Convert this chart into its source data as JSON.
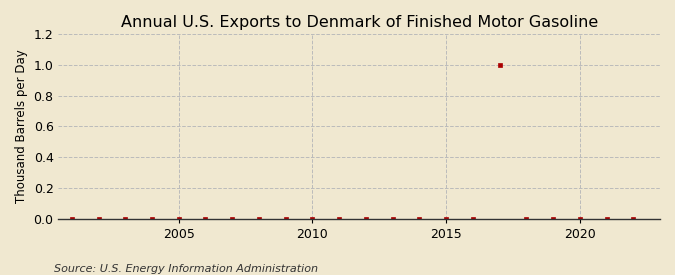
{
  "title": "Annual U.S. Exports to Denmark of Finished Motor Gasoline",
  "ylabel": "Thousand Barrels per Day",
  "source": "Source: U.S. Energy Information Administration",
  "background_color": "#f0e8d0",
  "years": [
    2001,
    2002,
    2003,
    2004,
    2005,
    2006,
    2007,
    2008,
    2009,
    2010,
    2011,
    2012,
    2013,
    2014,
    2015,
    2016,
    2017,
    2018,
    2019,
    2020,
    2021,
    2022
  ],
  "values": [
    0.0,
    0.0,
    0.0,
    0.0,
    0.0,
    0.0,
    0.0,
    0.0,
    0.0,
    0.0,
    0.0,
    0.0,
    0.0,
    0.0,
    0.0,
    0.0,
    1.0,
    0.0,
    0.0,
    0.0,
    0.0,
    0.0
  ],
  "marker_color": "#aa0000",
  "grid_color": "#bbbbbb",
  "ylim": [
    0.0,
    1.2
  ],
  "yticks": [
    0.0,
    0.2,
    0.4,
    0.6,
    0.8,
    1.0,
    1.2
  ],
  "xticks": [
    2005,
    2010,
    2015,
    2020
  ],
  "xlim": [
    2000.5,
    2023
  ],
  "title_fontsize": 11.5,
  "label_fontsize": 8.5,
  "tick_fontsize": 9,
  "source_fontsize": 8,
  "marker_size": 3.5
}
